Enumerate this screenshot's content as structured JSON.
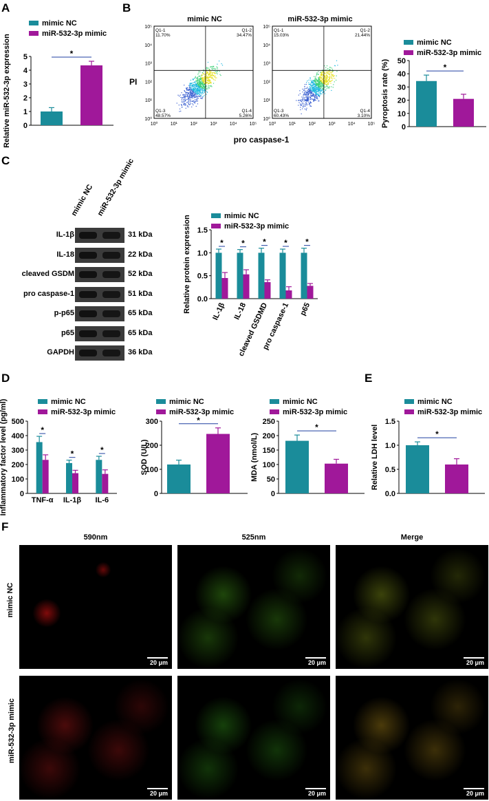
{
  "panels": {
    "A": "A",
    "B": "B",
    "C": "C",
    "D": "D",
    "E": "E",
    "F": "F"
  },
  "colors": {
    "mimic_nc": "#1a8c9a",
    "mir_mimic": "#a0189a"
  },
  "legend": {
    "nc": "mimic NC",
    "mimic": "miR-532-3p mimic"
  },
  "star": "*",
  "flow": {
    "titles": [
      "mimic NC",
      "miR-532-3p mimic"
    ],
    "ylabel": "PI",
    "xlabel": "pro caspase-1",
    "xticks": [
      "10⁰",
      "10¹",
      "10²",
      "10³",
      "10⁴",
      "10⁵"
    ],
    "yticks": [
      "10⁰",
      "10¹",
      "10²",
      "10³",
      "10⁴",
      "10⁵"
    ],
    "quadrants": [
      {
        "q1": "Q1-1",
        "v1": "11.70%",
        "q2": "Q1-2",
        "v2": "34.47%",
        "q3": "Q1-3",
        "v3": "48.57%",
        "q4": "Q1-4",
        "v4": "5.26%"
      },
      {
        "q1": "Q1-1",
        "v1": "15.03%",
        "q2": "Q1-2",
        "v2": "21.44%",
        "q3": "Q1-3",
        "v3": "60.43%",
        "q4": "Q1-4",
        "v4": "3.10%"
      }
    ]
  },
  "western": {
    "lanes": [
      "mimic NC",
      "miR-532-3p mimic"
    ],
    "rows": [
      {
        "label": "IL-1β",
        "kda": "31 kDa"
      },
      {
        "label": "IL-18",
        "kda": "22 kDa"
      },
      {
        "label": "cleaved GSDM",
        "kda": "52 kDa"
      },
      {
        "label": "pro caspase-1",
        "kda": "51 kDa"
      },
      {
        "label": "p-p65",
        "kda": "65 kDa"
      },
      {
        "label": "p65",
        "kda": "65 kDa"
      },
      {
        "label": "GAPDH",
        "kda": "36 kDa"
      }
    ]
  },
  "micro": {
    "cols": [
      "590nm",
      "525nm",
      "Merge"
    ],
    "rows": [
      "mimic NC",
      "miR-532-3p mimic"
    ],
    "scale": "20 μm"
  },
  "chart_data": [
    {
      "id": "A",
      "type": "bar",
      "categories": [
        "mimic NC",
        "miR-532-3p mimic"
      ],
      "values": [
        1.0,
        4.35
      ],
      "errors": [
        0.28,
        0.3
      ],
      "ylabel": "Relative miR-532-3p expression",
      "ylim": [
        0,
        5
      ],
      "yticks": [
        "0",
        "1",
        "2",
        "3",
        "4",
        "5"
      ]
    },
    {
      "id": "B",
      "type": "bar",
      "categories": [
        "mimic NC",
        "miR-532-3p mimic"
      ],
      "values": [
        34.5,
        21.0
      ],
      "errors": [
        4.5,
        3.5
      ],
      "ylabel": "Pyroptosis rate (%)",
      "ylim": [
        0,
        50
      ],
      "yticks": [
        "0",
        "10",
        "20",
        "30",
        "40",
        "50"
      ]
    },
    {
      "id": "C",
      "type": "bar",
      "categories": [
        "IL-1β",
        "IL-18",
        "cleaved GSDMD",
        "pro caspase-1",
        "p65"
      ],
      "series": [
        {
          "name": "mimic NC",
          "values": [
            1.0,
            1.0,
            1.0,
            1.0,
            1.0
          ],
          "errors": [
            0.08,
            0.07,
            0.1,
            0.08,
            0.1
          ]
        },
        {
          "name": "miR-532-3p mimic",
          "values": [
            0.45,
            0.53,
            0.36,
            0.18,
            0.28
          ],
          "errors": [
            0.12,
            0.1,
            0.05,
            0.08,
            0.05
          ]
        }
      ],
      "ylabel": "Relative protein expression",
      "ylim": [
        0,
        1.5
      ],
      "yticks": [
        "0.0",
        "0.5",
        "1.0",
        "1.5"
      ]
    },
    {
      "id": "D1",
      "type": "bar",
      "categories": [
        "TNF-α",
        "IL-1β",
        "IL-6"
      ],
      "series": [
        {
          "name": "mimic NC",
          "values": [
            355,
            210,
            232
          ],
          "errors": [
            40,
            20,
            25
          ]
        },
        {
          "name": "miR-532-3p mimic",
          "values": [
            232,
            140,
            135
          ],
          "errors": [
            35,
            20,
            28
          ]
        }
      ],
      "ylabel": "Inflammatory factor level (pg/ml)",
      "ylim": [
        0,
        500
      ],
      "yticks": [
        "0",
        "100",
        "200",
        "300",
        "400",
        "500"
      ]
    },
    {
      "id": "D2",
      "type": "bar",
      "categories": [
        "mimic NC",
        "miR-532-3p mimic"
      ],
      "values": [
        120,
        247
      ],
      "errors": [
        18,
        25
      ],
      "ylabel": "SOD (U/L)",
      "ylim": [
        0,
        300
      ],
      "yticks": [
        "0",
        "100",
        "200",
        "300"
      ]
    },
    {
      "id": "D3",
      "type": "bar",
      "categories": [
        "mimic NC",
        "miR-532-3p mimic"
      ],
      "values": [
        182,
        103
      ],
      "errors": [
        20,
        15
      ],
      "ylabel": "MDA (nmol/L)",
      "ylim": [
        0,
        250
      ],
      "yticks": [
        "0",
        "50",
        "100",
        "150",
        "200",
        "250"
      ]
    },
    {
      "id": "E",
      "type": "bar",
      "categories": [
        "mimic NC",
        "miR-532-3p mimic"
      ],
      "values": [
        1.0,
        0.6
      ],
      "errors": [
        0.07,
        0.12
      ],
      "ylabel": "Relative LDH level",
      "ylim": [
        0,
        1.5
      ],
      "yticks": [
        "0.0",
        "0.5",
        "1.0",
        "1.5"
      ]
    }
  ]
}
